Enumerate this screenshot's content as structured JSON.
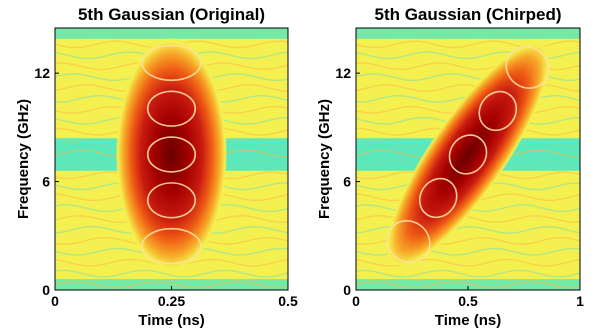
{
  "chart_data": [
    {
      "type": "heatmap",
      "title": "5th Gaussian (Original)",
      "xlabel": "Time (ns)",
      "ylabel": "Frequency (GHz)",
      "xlim": [
        0,
        0.5
      ],
      "ylim": [
        0,
        14.5
      ],
      "x_ticks": [
        0,
        0.25,
        0.5
      ],
      "x_tick_labels": [
        "0",
        "0.25",
        "0.5"
      ],
      "y_ticks": [
        0,
        6,
        12
      ],
      "y_tick_labels": [
        "0",
        "6",
        "12"
      ],
      "colormap": "jet (cyan-yellow-red)",
      "pulse": {
        "center_time": 0.25,
        "center_freq": 7.5,
        "time_halfwidth": 0.12,
        "freq_halfwidth": 6.5,
        "chirp": 0,
        "order": 5
      },
      "grid": false
    },
    {
      "type": "heatmap",
      "title": "5th Gaussian (Chirped)",
      "xlabel": "Time (ns)",
      "ylabel": "Frequency (GHz)",
      "xlim": [
        0,
        1
      ],
      "ylim": [
        0,
        14.5
      ],
      "x_ticks": [
        0,
        0.5,
        1
      ],
      "x_tick_labels": [
        "0",
        "0.5",
        "1"
      ],
      "y_ticks": [
        0,
        6,
        12
      ],
      "y_tick_labels": [
        "0",
        "6",
        "12"
      ],
      "colormap": "jet (cyan-yellow-red)",
      "pulse": {
        "center_time": 0.5,
        "center_freq": 7.5,
        "time_halfwidth": 0.55,
        "freq_halfwidth": 6.5,
        "chirp": 12,
        "order": 5
      },
      "grid": false
    }
  ],
  "colors": {
    "background": "#ffffff",
    "low": "#3fe6cc",
    "mid": "#f4f050",
    "high": "#c81a10",
    "peak": "#6a0000",
    "contour": "#ffe0a0"
  }
}
